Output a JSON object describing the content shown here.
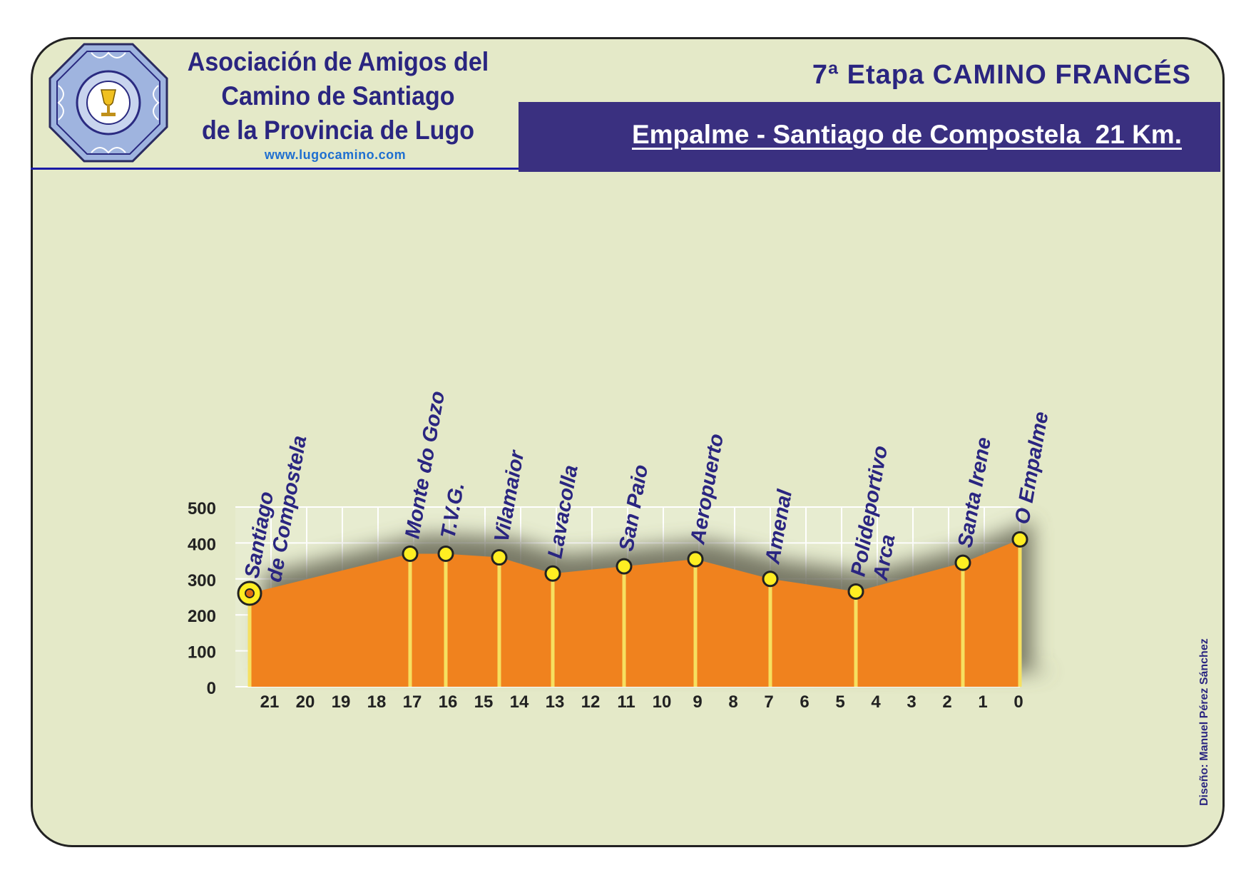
{
  "header": {
    "org_line1": "Asociación de Amigos del",
    "org_line2": "Camino de Santiago",
    "org_line3": "de la Provincia de Lugo",
    "website": "www.lugocamino.com",
    "stage_title": "7ª Etapa CAMINO FRANCÉS",
    "route_title": "Empalme - Santiago de Compostela  21 Km."
  },
  "credit": "Diseño: Manuel Pérez Sánchez",
  "colors": {
    "background": "#e4e9c8",
    "accent": "#3a3080",
    "area_fill": "#f0821e",
    "marker": "#ffee22"
  },
  "chart_data": {
    "type": "area",
    "title": "",
    "xlabel": "",
    "ylabel": "",
    "x_reversed": true,
    "xlim": [
      22,
      0
    ],
    "ylim": [
      0,
      500
    ],
    "yticks": [
      0,
      100,
      200,
      300,
      400,
      500
    ],
    "xticks": [
      21,
      20,
      19,
      18,
      17,
      16,
      15,
      14,
      13,
      12,
      11,
      10,
      9,
      8,
      7,
      6,
      5,
      4,
      3,
      2,
      1,
      0
    ],
    "grid": true,
    "points": [
      {
        "name": "Santiago\nde Compostela",
        "km": 21.6,
        "altitude": 260
      },
      {
        "name": "Monte do Gozo",
        "km": 17.1,
        "altitude": 370
      },
      {
        "name": "T.V.G.",
        "km": 16.1,
        "altitude": 370
      },
      {
        "name": "Vilamaior",
        "km": 14.6,
        "altitude": 360
      },
      {
        "name": "Lavacolla",
        "km": 13.1,
        "altitude": 315
      },
      {
        "name": "San Paio",
        "km": 11.1,
        "altitude": 335
      },
      {
        "name": "Aeropuerto",
        "km": 9.1,
        "altitude": 355
      },
      {
        "name": "Amenal",
        "km": 7.0,
        "altitude": 300
      },
      {
        "name": "Polideportivo\nArca",
        "km": 4.6,
        "altitude": 265
      },
      {
        "name": "Santa Irene",
        "km": 1.6,
        "altitude": 345
      },
      {
        "name": "O Empalme",
        "km": 0.0,
        "altitude": 410
      }
    ]
  }
}
